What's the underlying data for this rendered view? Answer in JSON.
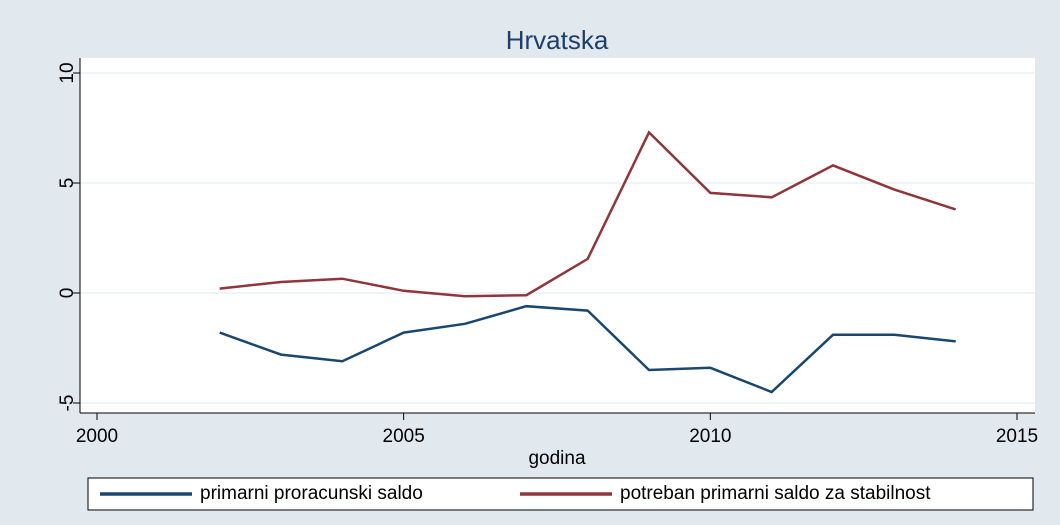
{
  "chart_data": {
    "type": "line",
    "title": "Hrvatska",
    "x_label": "godina",
    "x": [
      2002,
      2003,
      2004,
      2005,
      2006,
      2007,
      2008,
      2009,
      2010,
      2011,
      2012,
      2013,
      2014
    ],
    "series": [
      {
        "name": "primarni proracunski saldo",
        "color": "#1a476f",
        "values": [
          -1.8,
          -2.8,
          -3.1,
          -1.8,
          -1.4,
          -0.6,
          -0.8,
          -3.5,
          -3.4,
          -4.5,
          -1.9,
          -1.9,
          -2.2
        ]
      },
      {
        "name": "potreban primarni saldo za stabilnost",
        "color": "#90353b",
        "values": [
          0.2,
          0.5,
          0.65,
          0.1,
          -0.15,
          -0.1,
          1.55,
          7.3,
          4.55,
          4.35,
          5.8,
          4.7,
          3.8
        ]
      }
    ],
    "xlim": [
      2000,
      2015
    ],
    "xticks": [
      2000,
      2005,
      2010,
      2015
    ],
    "ylim": [
      -5,
      10
    ],
    "yticks": [
      -5,
      0,
      5,
      10
    ],
    "grid": true
  }
}
